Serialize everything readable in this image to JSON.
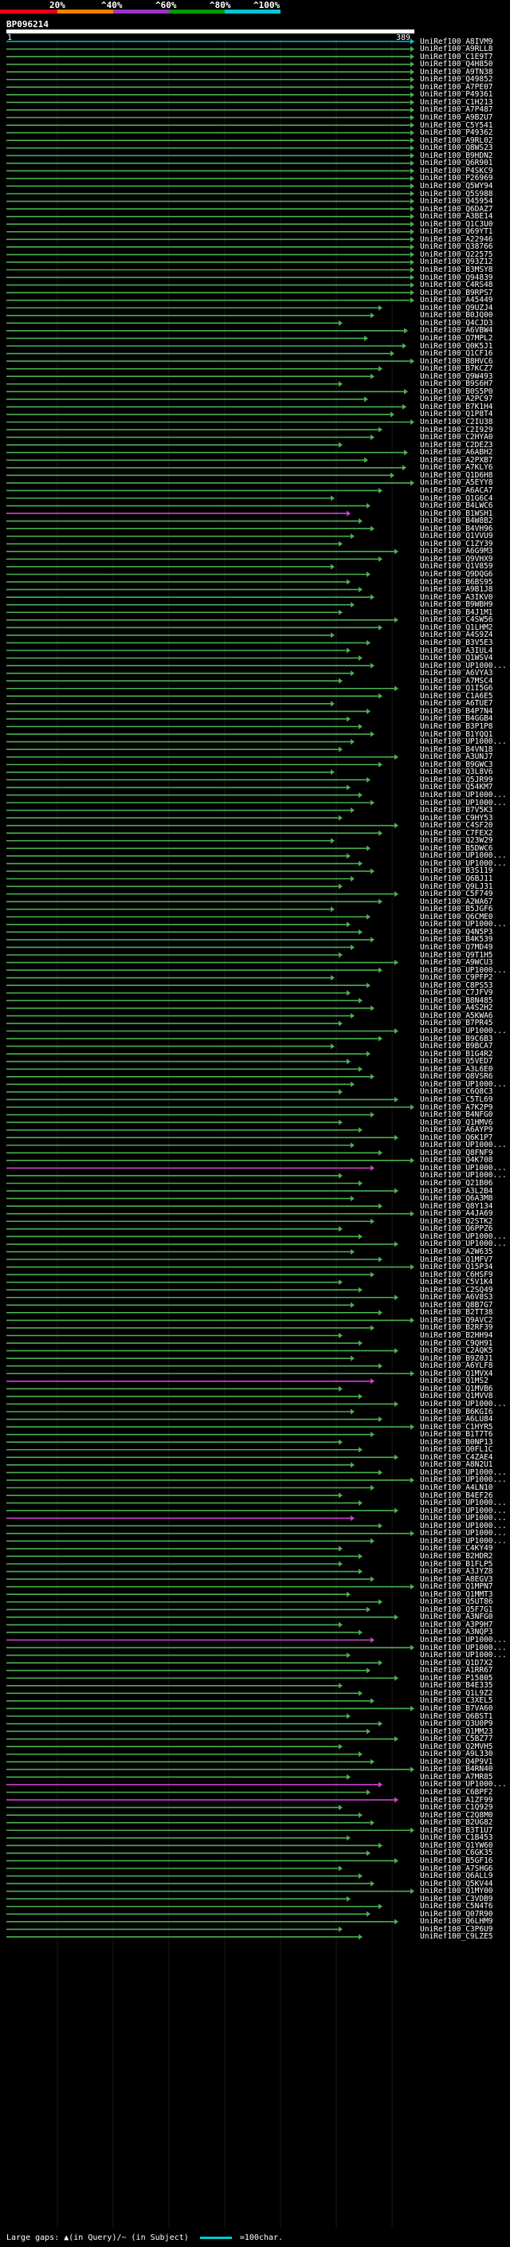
{
  "scale": {
    "labels": [
      "20%",
      "^40%",
      "^60%",
      "^80%",
      "^100%"
    ],
    "colors": [
      "#e8001c",
      "#ff7f00",
      "#9a34c6",
      "#009a00",
      "#00c8d8"
    ]
  },
  "query": {
    "id": "BP096214",
    "start": "1",
    "end": "389"
  },
  "footer": {
    "legend": "Large gaps: ▲(in Query)/~ (in Subject)",
    "scale_note": "=100char."
  },
  "colors": {
    "top_hit": "#00c8d8",
    "hit": "#4caf50",
    "highlight": "#cc44cc"
  },
  "hits": [
    "UniRef100_A8IVM9",
    "UniRef100_A9RLL8",
    "UniRef100_C1E9T7",
    "UniRef100_Q4H850",
    "UniRef100_A9TN38",
    "UniRef100_Q49852",
    "UniRef100_A7PE07",
    "UniRef100_P49361",
    "UniRef100_C1H213",
    "UniRef100_A7P487",
    "UniRef100_A9B2U7",
    "UniRef100_C5Y541",
    "UniRef100_P49362",
    "UniRef100_A9RL02",
    "UniRef100_Q8WS23",
    "UniRef100_B9HDN2",
    "UniRef100_Q6R901",
    "UniRef100_P4SKC9",
    "UniRef100_P26969",
    "UniRef100_Q5WY94",
    "UniRef100_Q5S988",
    "UniRef100_Q45954",
    "UniRef100_Q6DAZ7",
    "UniRef100_A3BE14",
    "UniRef100_Q1C3U0",
    "UniRef100_Q69YT1",
    "UniRef100_A22946",
    "UniRef100_Q38766",
    "UniRef100_Q22575",
    "UniRef100_Q93Z12",
    "UniRef100_B3MSY8",
    "UniRef100_Q94839",
    "UniRef100_C4RS48",
    "UniRef100_B9RPS7",
    "UniRef100_A45449",
    "UniRef100_Q9UZJ4",
    "UniRef100_B0JQ00",
    "UniRef100_Q4CJD3",
    "UniRef100_A6VBW4",
    "UniRef100_Q7MPL2",
    "UniRef100_Q0K5J1",
    "UniRef100_Q1CF16",
    "UniRef100_B8HVC6",
    "UniRef100_B7KCZ7",
    "UniRef100_Q9W493",
    "UniRef100_B9S6H7",
    "UniRef100_B0S5P0",
    "UniRef100_A2PC97",
    "UniRef100_B7K1H4",
    "UniRef100_Q1P8T4",
    "UniRef100_C2IU38",
    "UniRef100_C2I929",
    "UniRef100_C2HYA0",
    "UniRef100_C2DEZ3",
    "UniRef100_A6ABH2",
    "UniRef100_A2PXB7",
    "UniRef100_A7KLY6",
    "UniRef100_Q1D6H8",
    "UniRef100_A5EYY8",
    "UniRef100_A6ACA7",
    "UniRef100_Q1G6C4",
    "UniRef100_B4LWC6",
    "UniRef100_B1WSH1",
    "UniRef100_B4W8B2",
    "UniRef100_B4VH96",
    "UniRef100_Q1VVU9",
    "UniRef100_C1ZY39",
    "UniRef100_A6G9M3",
    "UniRef100_Q9VHX9",
    "UniRef100_Q1V859",
    "UniRef100_Q9DQG6",
    "UniRef100_B6BS95",
    "UniRef100_A9B1J8",
    "UniRef100_A3IKV0",
    "UniRef100_B9WBH9",
    "UniRef100_B4J1M1",
    "UniRef100_C4SW56",
    "UniRef100_Q1LHM2",
    "UniRef100_A4S9Z4",
    "UniRef100_B3V5E3",
    "UniRef100_A3IUL4",
    "UniRef100_Q1WSV4",
    "UniRef100_UP1000...",
    "UniRef100_A6VYA3",
    "UniRef100_A7MSC4",
    "UniRef100_Q1I5G6",
    "UniRef100_C1A6E5",
    "UniRef100_A6TUE7",
    "UniRef100_B4P7N4",
    "UniRef100_B4GGB4",
    "UniRef100_B3P1P8",
    "UniRef100_B1YQQ1",
    "UniRef100_UP1000...",
    "UniRef100_B4VN18",
    "UniRef100_A3UNJ7",
    "UniRef100_B9GWC3",
    "UniRef100_Q3L8V6",
    "UniRef100_Q5JR99",
    "UniRef100_Q54KM7",
    "UniRef100_UP1000...",
    "UniRef100_UP1000...",
    "UniRef100_B7V5K3",
    "UniRef100_C9HY53",
    "UniRef100_C4SF20",
    "UniRef100_C7FEX2",
    "UniRef100_Q23W29",
    "UniRef100_B5DWC6",
    "UniRef100_UP1000...",
    "UniRef100_UP1000...",
    "UniRef100_B3S119",
    "UniRef100_Q6BJ11",
    "UniRef100_Q9LJ31",
    "UniRef100_C5F749",
    "UniRef100_A2WA67",
    "UniRef100_B5JGF6",
    "UniRef100_Q6CME0",
    "UniRef100_UP1000...",
    "UniRef100_Q4N5P3",
    "UniRef100_B4K539",
    "UniRef100_Q7MD49",
    "UniRef100_Q9T1H5",
    "UniRef100_A9WCU3",
    "UniRef100_UP1000...",
    "UniRef100_C9PFP2",
    "UniRef100_C8PS53",
    "UniRef100_C7JFV9",
    "UniRef100_B8N485",
    "UniRef100_A4S2H2",
    "UniRef100_A5KWA6",
    "UniRef100_B7PR45",
    "UniRef100_UP1000...",
    "UniRef100_B9C6B3",
    "UniRef100_B9BCA7",
    "UniRef100_B1G4R2",
    "UniRef100_Q5VED7",
    "UniRef100_A3L6E0",
    "UniRef100_Q8VSR6",
    "UniRef100_UP1000...",
    "UniRef100_C6Q8C3",
    "UniRef100_C5TL69",
    "UniRef100_A7K2P9",
    "UniRef100_B4NFG0",
    "UniRef100_Q1HMV6",
    "UniRef100_A6AYP9",
    "UniRef100_Q6K1P7",
    "UniRef100_UP1000...",
    "UniRef100_Q8FNF9",
    "UniRef100_Q4K708",
    "UniRef100_UP1000...",
    "UniRef100_UP1000...",
    "UniRef100_Q21B06",
    "UniRef100_A3L2B4",
    "UniRef100_Q6A3M8",
    "UniRef100_Q8Y134",
    "UniRef100_A4JA69",
    "UniRef100_Q2STK2",
    "UniRef100_Q6PPZ6",
    "UniRef100_UP1000...",
    "UniRef100_UP1000...",
    "UniRef100_A2W635",
    "UniRef100_Q1MFV7",
    "UniRef100_Q15P34",
    "UniRef100_C6HSF9",
    "UniRef100_C5V1K4",
    "UniRef100_C2SQ49",
    "UniRef100_A6V8S3",
    "UniRef100_Q8B7G7",
    "UniRef100_B2TT38",
    "UniRef100_Q9AVC2",
    "UniRef100_B2RF39",
    "UniRef100_B2HH94",
    "UniRef100_C9QH91",
    "UniRef100_C2AQK5",
    "UniRef100_B9Z0J1",
    "UniRef100_A6YLF8",
    "UniRef100_Q1MVX4",
    "UniRef100_Q1MS2",
    "UniRef100_Q1MVB6",
    "UniRef100_Q1MVV8",
    "UniRef100_UP1000...",
    "UniRef100_B6KGI6",
    "UniRef100_A6LU84",
    "UniRef100_C1HYR5",
    "UniRef100_B1T7T6",
    "UniRef100_B0NP13",
    "UniRef100_Q0FL1C",
    "UniRef100_C4ZAE4",
    "UniRef100_A8N2U1",
    "UniRef100_UP1000...",
    "UniRef100_UP1000...",
    "UniRef100_A4LN10",
    "UniRef100_B4EF26",
    "UniRef100_UP1000...",
    "UniRef100_UP1000...",
    "UniRef100_UP1000...",
    "UniRef100_UP1000...",
    "UniRef100_UP1000...",
    "UniRef100_UP1000...",
    "UniRef100_C4KY49",
    "UniRef100_B2HDR2",
    "UniRef100_B1FLP5",
    "UniRef100_A3JYZ8",
    "UniRef100_A8EGV3",
    "UniRef100_Q1MPN7",
    "UniRef100_Q1MMT3",
    "UniRef100_Q5UT86",
    "UniRef100_Q5F7G1",
    "UniRef100_A3NFG0",
    "UniRef100_A3P9H7",
    "UniRef100_A3NQP3",
    "UniRef100_UP1000...",
    "UniRef100_UP1000...",
    "UniRef100_UP1000...",
    "UniRef100_Q1D7X2",
    "UniRef100_A1RR67",
    "UniRef100_P15805",
    "UniRef100_B4E335",
    "UniRef100_Q1L9Z2",
    "UniRef100_C3XEL5",
    "UniRef100_B7VA60",
    "UniRef100_Q6BST1",
    "UniRef100_Q3U0P9",
    "UniRef100_Q1MM23",
    "UniRef100_C5BZ77",
    "UniRef100_Q2MVH5",
    "UniRef100_A9L330",
    "UniRef100_Q4P9V1",
    "UniRef100_B4RN40",
    "UniRef100_A7MR85",
    "UniRef100_UP1000...",
    "UniRef100_C6BPF2",
    "UniRef100_A1ZF99",
    "UniRef100_C1Q929",
    "UniRef100_C2Q8M0",
    "UniRef100_B2UG82",
    "UniRef100_B3T1U7",
    "UniRef100_C1B453",
    "UniRef100_Q1YW60",
    "UniRef100_C6GK35",
    "UniRef100_B5GF16",
    "UniRef100_A7SHG6",
    "UniRef100_Q6ALL9",
    "UniRef100_Q5KV44",
    "UniRef100_Q1MY00",
    "UniRef100_C3VDB9",
    "UniRef100_C5N4T6",
    "UniRef100_Q07R90",
    "UniRef100_Q6LHM9",
    "UniRef100_C3P6U9",
    "UniRef100_C9LZE5"
  ]
}
